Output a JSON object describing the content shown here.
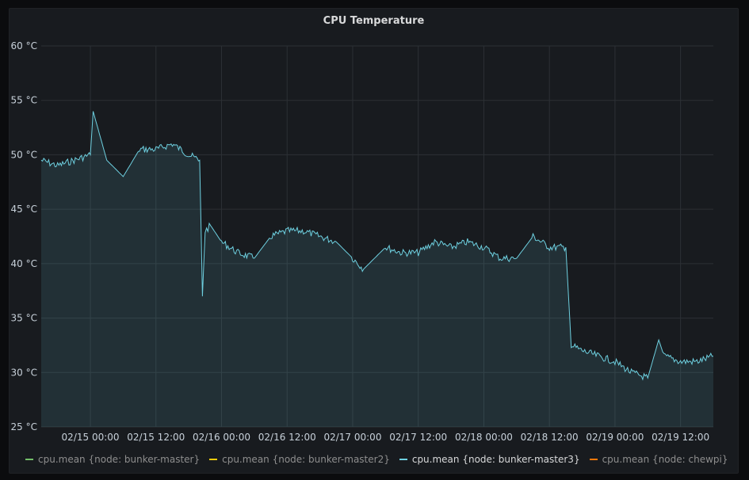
{
  "panel": {
    "title": "CPU Temperature"
  },
  "chart_data": {
    "type": "area",
    "title": "CPU Temperature",
    "y_unit": "°C",
    "ylim": [
      25,
      60
    ],
    "y_ticks": [
      "60 °C",
      "55 °C",
      "50 °C",
      "45 °C",
      "40 °C",
      "35 °C",
      "30 °C",
      "25 °C"
    ],
    "x_range": [
      "02/14 15:00",
      "02/19 18:00"
    ],
    "x_ticks": [
      "02/15 00:00",
      "02/15 12:00",
      "02/16 00:00",
      "02/16 12:00",
      "02/17 00:00",
      "02/17 12:00",
      "02/18 00:00",
      "02/18 12:00",
      "02/19 00:00",
      "02/19 12:00"
    ],
    "grid": true,
    "legend_position": "bottom",
    "series": [
      {
        "name": "cpu.mean {node: bunker-master}",
        "color": "#73bf69",
        "active": false,
        "x": [],
        "y": []
      },
      {
        "name": "cpu.mean {node: bunker-master2}",
        "color": "#f2cc0c",
        "active": false,
        "x": [],
        "y": []
      },
      {
        "name": "cpu.mean {node: bunker-master3}",
        "color": "#6ed0e0",
        "active": true,
        "x": [
          "02/14 15:00",
          "02/14 18:00",
          "02/14 21:00",
          "02/15 00:00",
          "02/15 00:30",
          "02/15 03:00",
          "02/15 06:00",
          "02/15 09:00",
          "02/15 12:00",
          "02/15 15:00",
          "02/15 18:00",
          "02/15 20:00",
          "02/15 20:30",
          "02/15 21:00",
          "02/15 22:00",
          "02/16 00:00",
          "02/16 03:00",
          "02/16 06:00",
          "02/16 09:00",
          "02/16 12:00",
          "02/16 15:00",
          "02/16 18:00",
          "02/16 21:00",
          "02/17 00:00",
          "02/17 02:00",
          "02/17 06:00",
          "02/17 09:00",
          "02/17 12:00",
          "02/17 15:00",
          "02/17 18:00",
          "02/17 21:00",
          "02/18 00:00",
          "02/18 03:00",
          "02/18 06:00",
          "02/18 09:00",
          "02/18 12:00",
          "02/18 15:00",
          "02/18 16:00",
          "02/18 18:00",
          "02/18 21:00",
          "02/19 00:00",
          "02/19 03:00",
          "02/19 06:00",
          "02/19 08:00",
          "02/19 09:00",
          "02/19 12:00",
          "02/19 15:00",
          "02/19 18:00"
        ],
        "y": [
          49.5,
          49.0,
          49.5,
          50.0,
          54.0,
          49.5,
          48.0,
          50.5,
          50.5,
          51.0,
          50.0,
          49.5,
          37.0,
          43.0,
          43.5,
          42.0,
          41.0,
          40.5,
          42.5,
          43.0,
          43.0,
          42.5,
          42.0,
          40.5,
          39.5,
          41.5,
          41.0,
          41.0,
          42.0,
          41.5,
          42.0,
          41.5,
          40.5,
          40.5,
          42.5,
          41.5,
          41.5,
          32.5,
          32.0,
          31.5,
          31.0,
          30.0,
          29.5,
          33.0,
          31.5,
          31.0,
          31.0,
          31.5
        ]
      },
      {
        "name": "cpu.mean {node: chewpi}",
        "color": "#ff780a",
        "active": false,
        "x": [],
        "y": []
      }
    ]
  }
}
